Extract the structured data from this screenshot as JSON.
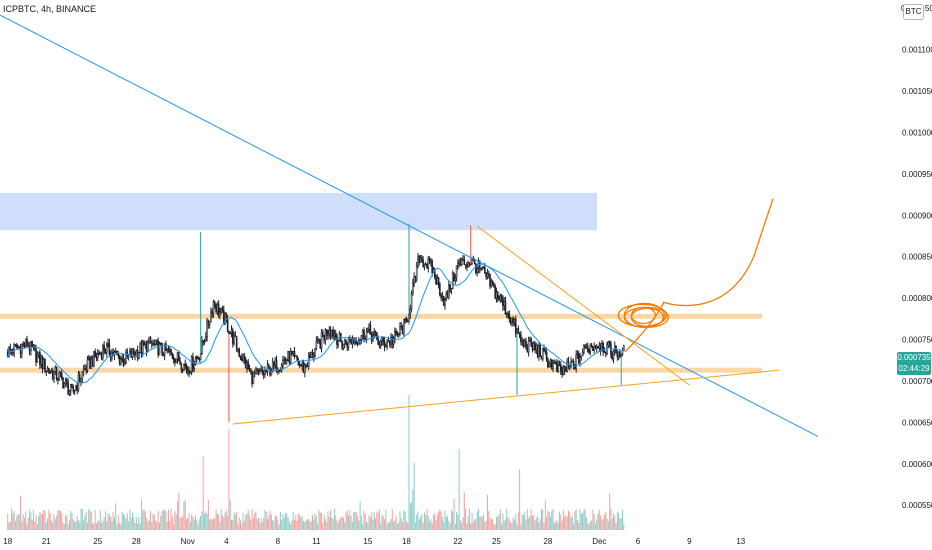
{
  "header": {
    "symbol_label": "ICPBTC, 4h, BINANCE"
  },
  "price_axis": {
    "currency_badge": "BTC",
    "top_label": "0.001150",
    "current_price": "0.000735",
    "countdown": "02:44:29"
  },
  "colors": {
    "up": "#26a69a",
    "down": "#ef5350",
    "candle_body": "#1f222b",
    "ma_line": "#2196f3",
    "trendline": "#2196f3",
    "triangle": "#f7a21b",
    "projection": "#f57c00",
    "zone": "#c5d8fa",
    "level": "#f9c98a"
  },
  "chart_data": {
    "type": "candlestick",
    "title": "",
    "symbol": "ICPBTC",
    "interval": "4h",
    "exchange": "BINANCE",
    "ylim": [
      0.00052,
      0.00116
    ],
    "y_ticks": [
      "0.001100",
      "0.001050",
      "0.001000",
      "0.000950",
      "0.000900",
      "0.000850",
      "0.000800",
      "0.000750",
      "0.000700",
      "0.000650",
      "0.000600",
      "0.000550"
    ],
    "x_ticks": [
      "18",
      "21",
      "25",
      "28",
      "Nov",
      "4",
      "8",
      "11",
      "15",
      "18",
      "22",
      "25",
      "28",
      "Dec",
      "6",
      "9",
      "13"
    ],
    "current_price": 0.000735,
    "price_path": [
      [
        0,
        0.000735
      ],
      [
        1.5,
        0.000745
      ],
      [
        3,
        0.000715
      ],
      [
        4,
        0.000705
      ],
      [
        5,
        0.000685
      ],
      [
        6,
        0.000715
      ],
      [
        7.5,
        0.00074
      ],
      [
        9,
        0.000725
      ],
      [
        11,
        0.000745
      ],
      [
        13,
        0.00073
      ],
      [
        14,
        0.000715
      ],
      [
        15,
        0.000735
      ],
      [
        16,
        0.000795
      ],
      [
        17,
        0.00077
      ],
      [
        18,
        0.000735
      ],
      [
        19,
        0.000705
      ],
      [
        20,
        0.00071
      ],
      [
        21,
        0.00072
      ],
      [
        22,
        0.00073
      ],
      [
        23,
        0.000715
      ],
      [
        24,
        0.00074
      ],
      [
        25,
        0.000765
      ],
      [
        26,
        0.000745
      ],
      [
        27,
        0.00075
      ],
      [
        28,
        0.00076
      ],
      [
        29,
        0.000745
      ],
      [
        30,
        0.00075
      ],
      [
        31,
        0.00077
      ],
      [
        32,
        0.00085
      ],
      [
        33,
        0.000835
      ],
      [
        34,
        0.000795
      ],
      [
        35,
        0.00084
      ],
      [
        36,
        0.000845
      ],
      [
        37,
        0.00083
      ],
      [
        38,
        0.000805
      ],
      [
        39,
        0.00078
      ],
      [
        40,
        0.000745
      ],
      [
        41,
        0.00074
      ],
      [
        42,
        0.000725
      ],
      [
        43,
        0.00071
      ],
      [
        44,
        0.00072
      ],
      [
        45,
        0.00074
      ],
      [
        46,
        0.000745
      ],
      [
        47,
        0.000735
      ],
      [
        48,
        0.000735
      ]
    ],
    "candle_count": 480,
    "key_levels": {
      "supply_zone": [
        0.000882,
        0.000927
      ],
      "resistance": 0.000778,
      "support": 0.000713
    },
    "descending_trendline": [
      [
        -1.0,
        0.001145
      ],
      [
        63.0,
        0.000633
      ]
    ],
    "triangle_upper": [
      [
        36.5,
        0.000887
      ],
      [
        53.0,
        0.000695
      ]
    ],
    "triangle_lower": [
      [
        17.5,
        0.000648
      ],
      [
        60.0,
        0.000713
      ]
    ],
    "projection_path": [
      [
        48.0,
        0.000735
      ],
      [
        51.0,
        0.000795
      ],
      [
        55.0,
        0.000775
      ],
      [
        58.0,
        0.00085
      ],
      [
        59.5,
        0.00092
      ]
    ],
    "volume": {
      "max_relative": 1.0
    }
  }
}
